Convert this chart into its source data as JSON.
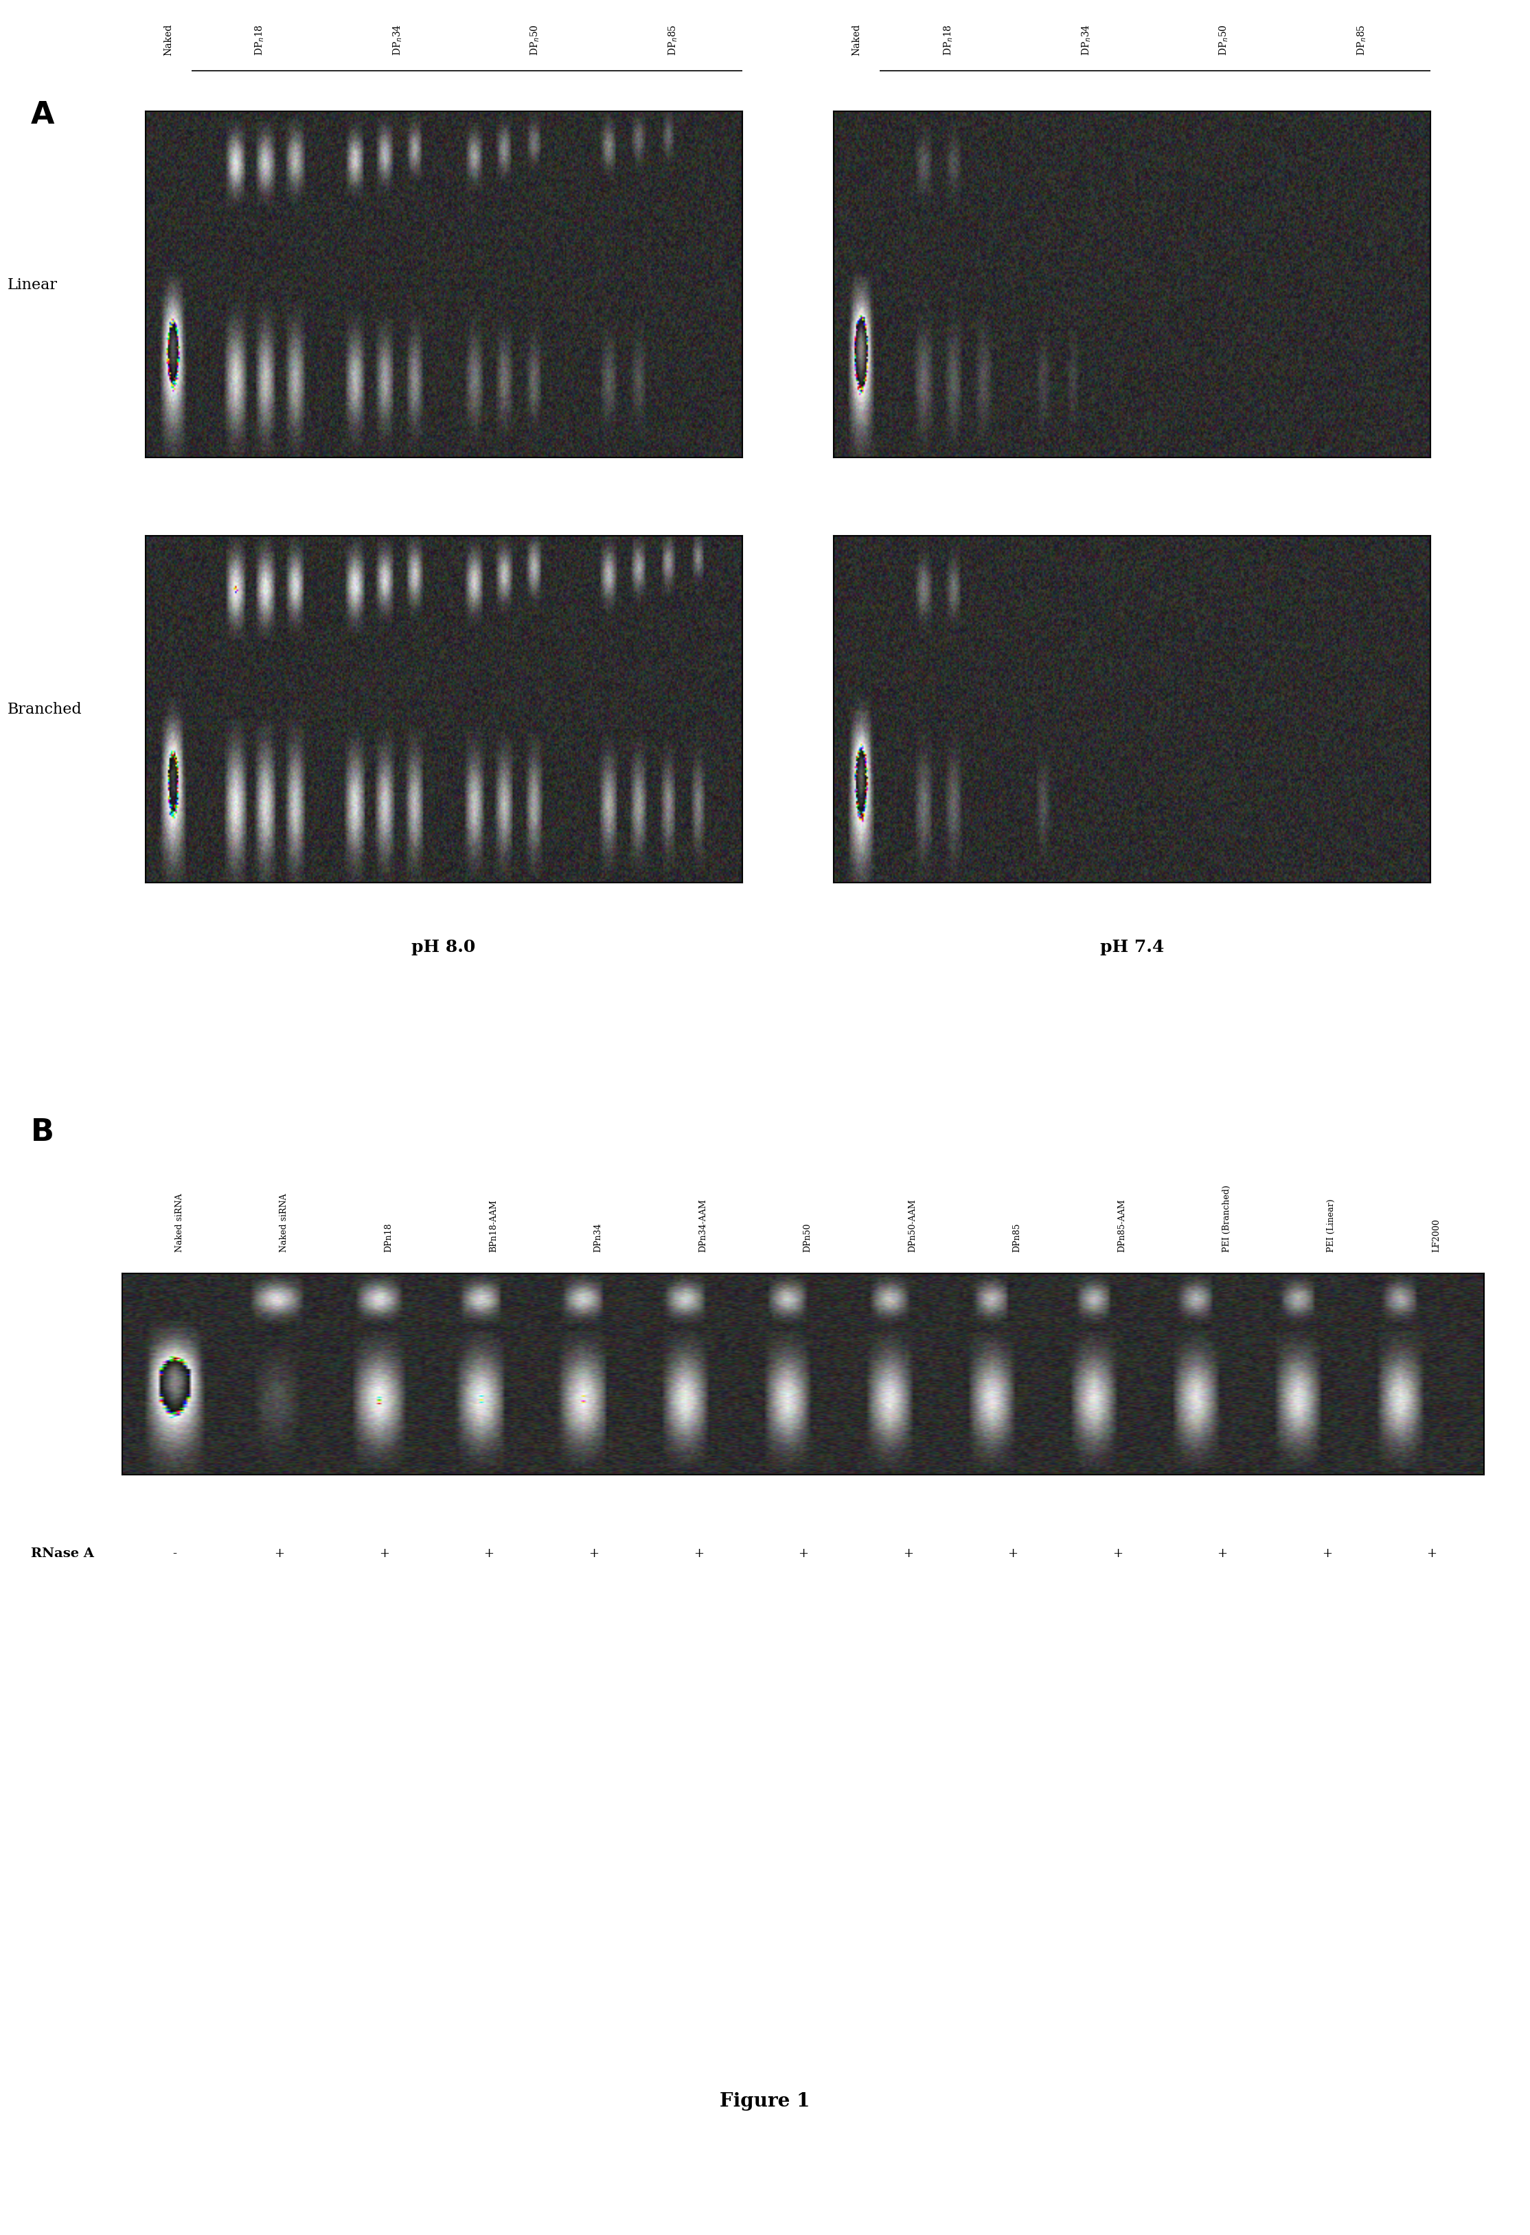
{
  "panel_A_label": "A",
  "panel_B_label": "B",
  "figure_label": "Figure 1",
  "pH_labels": [
    "pH 8.0",
    "pH 7.4"
  ],
  "row_labels": [
    "Linear",
    "Branched"
  ],
  "col_headers_A": [
    "Naked",
    "DPₙ 18",
    "DPₙ 34",
    "DPₙ 50",
    "DPₙ 85"
  ],
  "col_headers_B": [
    "Naked siRNA",
    "Naked siRNA",
    "DPn18",
    "BPn18-AAM",
    "DPn34",
    "DPn34-AAM",
    "DPn50",
    "DPn50-AAM",
    "DPn85",
    "DPn85-AAM",
    "PEI (Branched)",
    "PEI (Linear)",
    "LF2000"
  ],
  "RNase_A_label": "RNase A",
  "RNase_A_signs": [
    "-",
    "+",
    "+",
    "+",
    "+",
    "+",
    "+",
    "+",
    "+",
    "+",
    "+",
    "+",
    "+"
  ],
  "background_color": "#ffffff",
  "gel_bg_color": "#3a3a3a",
  "band_color_bright": "#e8e8d0",
  "band_color_mid": "#c8c8b0"
}
